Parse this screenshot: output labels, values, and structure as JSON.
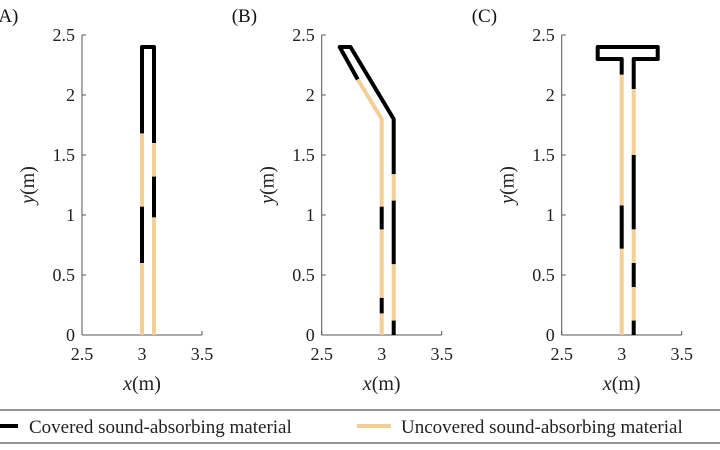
{
  "colors": {
    "covered": "#000000",
    "uncovered": "#f4cf95",
    "axis": "#555555"
  },
  "legend": {
    "placement": "bottom",
    "items": [
      {
        "label": "Covered sound-absorbing material",
        "material": "covered"
      },
      {
        "label": "Uncovered sound-absorbing material",
        "material": "uncovered"
      }
    ]
  },
  "chart_data": [
    {
      "type": "line",
      "panel_label": "(A)",
      "xlabel_var": "x",
      "xlabel_unit": "(m)",
      "ylabel_var": "y",
      "ylabel_unit": "(m)",
      "xlim": [
        2.5,
        3.5
      ],
      "ylim": [
        0,
        2.5
      ],
      "xticks": [
        "2.5",
        "3",
        "3.5"
      ],
      "xtick_values": [
        2.5,
        3,
        3.5
      ],
      "yticks": [
        "0",
        "0.5",
        "1",
        "1.5",
        "2",
        "2.5"
      ],
      "ytick_values": [
        0,
        0.5,
        1,
        1.5,
        2,
        2.5
      ],
      "grid": false,
      "segments": [
        {
          "material": "uncovered",
          "points": [
            [
              3.0,
              0
            ],
            [
              3.0,
              0.6
            ]
          ]
        },
        {
          "material": "covered",
          "points": [
            [
              3.0,
              0.6
            ],
            [
              3.0,
              1.07
            ]
          ]
        },
        {
          "material": "uncovered",
          "points": [
            [
              3.0,
              1.07
            ],
            [
              3.0,
              1.68
            ]
          ]
        },
        {
          "material": "covered",
          "points": [
            [
              3.0,
              1.68
            ],
            [
              3.0,
              2.4
            ],
            [
              3.1,
              2.4
            ],
            [
              3.1,
              1.6
            ]
          ]
        },
        {
          "material": "uncovered",
          "points": [
            [
              3.1,
              1.6
            ],
            [
              3.1,
              1.32
            ]
          ]
        },
        {
          "material": "covered",
          "points": [
            [
              3.1,
              1.32
            ],
            [
              3.1,
              0.98
            ]
          ]
        },
        {
          "material": "uncovered",
          "points": [
            [
              3.1,
              0.98
            ],
            [
              3.1,
              0
            ]
          ]
        }
      ]
    },
    {
      "type": "line",
      "panel_label": "(B)",
      "xlabel_var": "x",
      "xlabel_unit": "(m)",
      "ylabel_var": "y",
      "ylabel_unit": "(m)",
      "xlim": [
        2.5,
        3.5
      ],
      "ylim": [
        0,
        2.5
      ],
      "xticks": [
        "2.5",
        "3",
        "3.5"
      ],
      "xtick_values": [
        2.5,
        3,
        3.5
      ],
      "yticks": [
        "0",
        "0.5",
        "1",
        "1.5",
        "2",
        "2.5"
      ],
      "ytick_values": [
        0,
        0.5,
        1,
        1.5,
        2,
        2.5
      ],
      "grid": false,
      "segments": [
        {
          "material": "uncovered",
          "points": [
            [
              3.0,
              0
            ],
            [
              3.0,
              0.18
            ]
          ]
        },
        {
          "material": "covered",
          "points": [
            [
              3.0,
              0.18
            ],
            [
              3.0,
              0.31
            ]
          ]
        },
        {
          "material": "uncovered",
          "points": [
            [
              3.0,
              0.31
            ],
            [
              3.0,
              0.88
            ]
          ]
        },
        {
          "material": "covered",
          "points": [
            [
              3.0,
              0.88
            ],
            [
              3.0,
              1.07
            ]
          ]
        },
        {
          "material": "uncovered",
          "points": [
            [
              3.0,
              1.07
            ],
            [
              3.0,
              1.8
            ],
            [
              2.8,
              2.13
            ]
          ]
        },
        {
          "material": "covered",
          "points": [
            [
              2.8,
              2.13
            ],
            [
              2.65,
              2.4
            ],
            [
              2.74,
              2.4
            ],
            [
              3.1,
              1.8
            ],
            [
              3.1,
              1.34
            ]
          ]
        },
        {
          "material": "uncovered",
          "points": [
            [
              3.1,
              1.34
            ],
            [
              3.1,
              1.12
            ]
          ]
        },
        {
          "material": "covered",
          "points": [
            [
              3.1,
              1.12
            ],
            [
              3.1,
              0.59
            ]
          ]
        },
        {
          "material": "uncovered",
          "points": [
            [
              3.1,
              0.59
            ],
            [
              3.1,
              0.12
            ]
          ]
        },
        {
          "material": "covered",
          "points": [
            [
              3.1,
              0.12
            ],
            [
              3.1,
              0
            ]
          ]
        }
      ]
    },
    {
      "type": "line",
      "panel_label": "(C)",
      "xlabel_var": "x",
      "xlabel_unit": "(m)",
      "ylabel_var": "y",
      "ylabel_unit": "(m)",
      "xlim": [
        2.5,
        3.5
      ],
      "ylim": [
        0,
        2.5
      ],
      "xticks": [
        "2.5",
        "3",
        "3.5"
      ],
      "xtick_values": [
        2.5,
        3,
        3.5
      ],
      "yticks": [
        "0",
        "0.5",
        "1",
        "1.5",
        "2",
        "2.5"
      ],
      "ytick_values": [
        0,
        0.5,
        1,
        1.5,
        2,
        2.5
      ],
      "grid": false,
      "segments": [
        {
          "material": "uncovered",
          "points": [
            [
              3.0,
              0
            ],
            [
              3.0,
              0.72
            ]
          ]
        },
        {
          "material": "covered",
          "points": [
            [
              3.0,
              0.72
            ],
            [
              3.0,
              1.08
            ]
          ]
        },
        {
          "material": "uncovered",
          "points": [
            [
              3.0,
              1.08
            ],
            [
              3.0,
              2.17
            ]
          ]
        },
        {
          "material": "covered",
          "points": [
            [
              3.0,
              2.17
            ],
            [
              3.0,
              2.3
            ],
            [
              2.8,
              2.3
            ],
            [
              2.8,
              2.4
            ],
            [
              3.3,
              2.4
            ],
            [
              3.3,
              2.3
            ],
            [
              3.1,
              2.3
            ],
            [
              3.1,
              2.05
            ]
          ]
        },
        {
          "material": "uncovered",
          "points": [
            [
              3.1,
              2.05
            ],
            [
              3.1,
              1.5
            ]
          ]
        },
        {
          "material": "covered",
          "points": [
            [
              3.1,
              1.5
            ],
            [
              3.1,
              0.88
            ]
          ]
        },
        {
          "material": "uncovered",
          "points": [
            [
              3.1,
              0.88
            ],
            [
              3.1,
              0.6
            ]
          ]
        },
        {
          "material": "covered",
          "points": [
            [
              3.1,
              0.6
            ],
            [
              3.1,
              0.4
            ]
          ]
        },
        {
          "material": "uncovered",
          "points": [
            [
              3.1,
              0.4
            ],
            [
              3.1,
              0.12
            ]
          ]
        },
        {
          "material": "covered",
          "points": [
            [
              3.1,
              0.12
            ],
            [
              3.1,
              0
            ]
          ]
        }
      ]
    }
  ]
}
